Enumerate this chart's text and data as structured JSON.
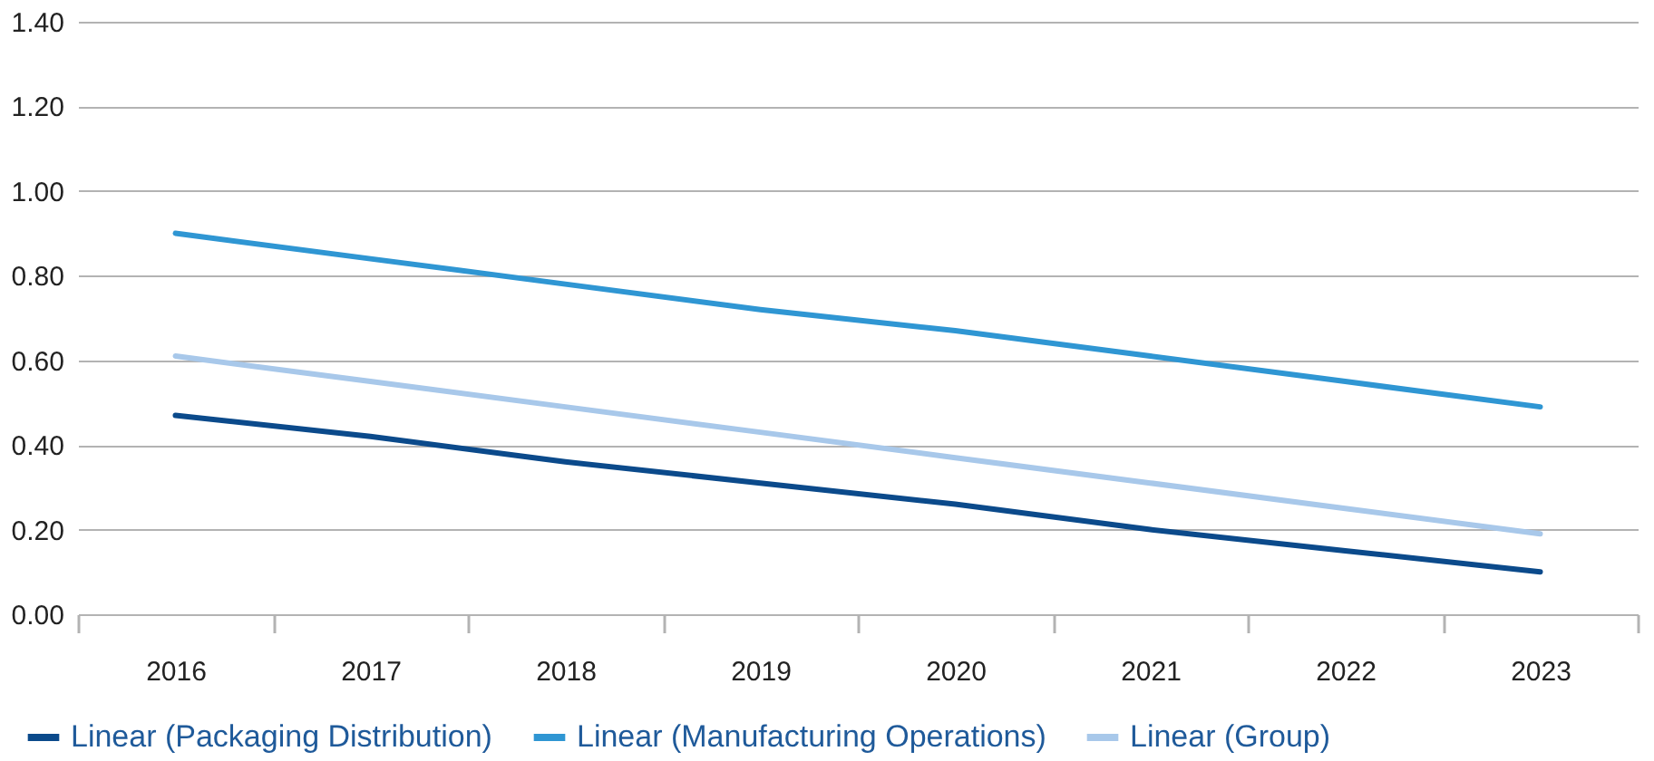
{
  "chart_data": {
    "type": "line",
    "categories": [
      "2016",
      "2017",
      "2018",
      "2019",
      "2020",
      "2021",
      "2022",
      "2023"
    ],
    "series": [
      {
        "name": "Linear (Packaging Distribution)",
        "color": "#0b4a8b",
        "values": [
          0.47,
          0.42,
          0.36,
          0.31,
          0.26,
          0.2,
          0.15,
          0.1
        ]
      },
      {
        "name": "Linear (Manufacturing Operations)",
        "color": "#2f96d3",
        "values": [
          0.9,
          0.84,
          0.78,
          0.72,
          0.67,
          0.61,
          0.55,
          0.49
        ]
      },
      {
        "name": "Linear (Group)",
        "color": "#a8c8ea",
        "values": [
          0.61,
          0.55,
          0.49,
          0.43,
          0.37,
          0.31,
          0.25,
          0.19
        ]
      }
    ],
    "ylim": [
      0,
      1.4
    ],
    "yticks": [
      {
        "value": 0,
        "label": "0.00"
      },
      {
        "value": 0.2,
        "label": "0.20"
      },
      {
        "value": 0.4,
        "label": "0.40"
      },
      {
        "value": 0.6,
        "label": "0.60"
      },
      {
        "value": 0.8,
        "label": "0.80"
      },
      {
        "value": 1.0,
        "label": "1.00"
      },
      {
        "value": 1.2,
        "label": "1.20"
      },
      {
        "value": 1.4,
        "label": "1.40"
      }
    ],
    "grid": "y",
    "legend": "bottom",
    "marker": "none",
    "line_style": "solid"
  }
}
